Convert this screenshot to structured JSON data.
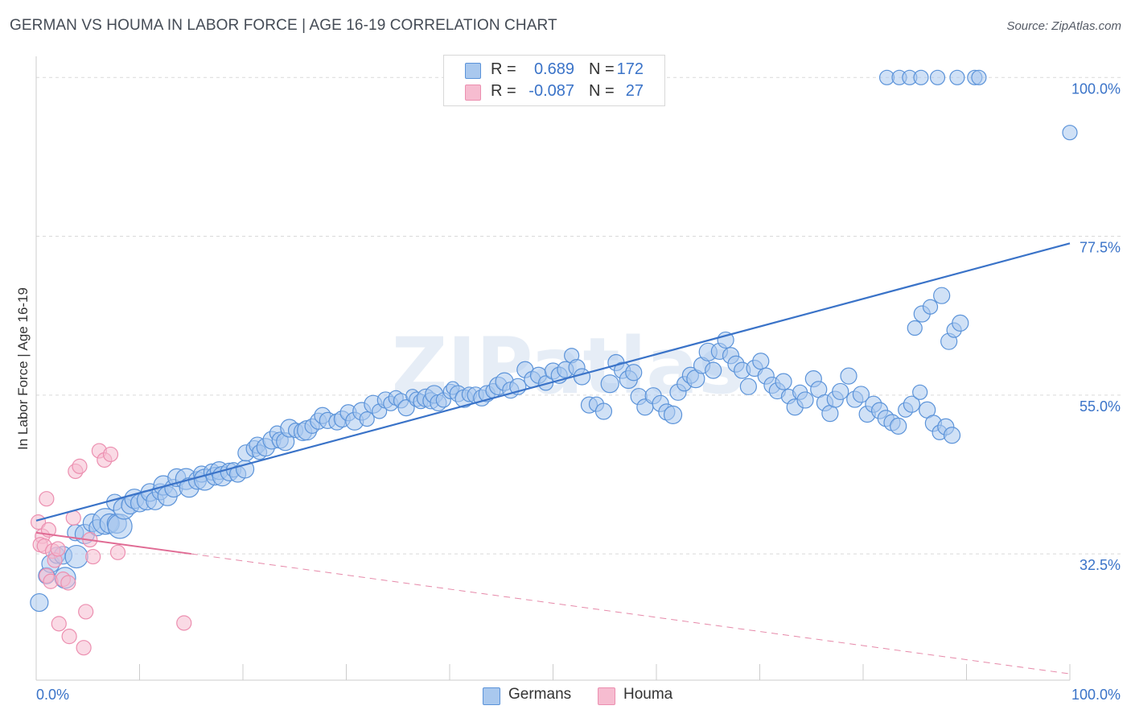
{
  "title": "GERMAN VS HOUMA IN LABOR FORCE | AGE 16-19 CORRELATION CHART",
  "source": "Source: ZipAtlas.com",
  "watermark": "ZIPatlas",
  "colors": {
    "blue": "#3a73c8",
    "blue_fill": "#a9c8ee",
    "blue_stroke": "#5b93d9",
    "pink": "#e06b94",
    "pink_fill": "#f6bcd0",
    "pink_stroke": "#ec8fb0",
    "grid": "#d9d9d9",
    "axis": "#cccccc"
  },
  "legend_top": [
    {
      "series": "Germans",
      "r_label": "R =",
      "r_value": "0.689",
      "n_label": "N =",
      "n_value": "172",
      "swatch": "#a9c8ee"
    },
    {
      "series": "Houma",
      "r_label": "R =",
      "r_value": "-0.087",
      "n_label": "N =",
      "n_value": "27",
      "swatch": "#f6bcd0"
    }
  ],
  "legend_bottom": [
    {
      "label": "Germans",
      "swatch": "#a9c8ee"
    },
    {
      "label": "Houma",
      "swatch": "#f6bcd0"
    }
  ],
  "chart_data": {
    "type": "scatter",
    "title": "GERMAN VS HOUMA IN LABOR FORCE | AGE 16-19 CORRELATION CHART",
    "xlabel": "",
    "ylabel": "In Labor Force | Age 16-19",
    "xlim": [
      0,
      100
    ],
    "ylim": [
      14.6,
      103
    ],
    "x_tick_labels": [
      {
        "value": 0,
        "label": "0.0%"
      },
      {
        "value": 100,
        "label": "100.0%"
      }
    ],
    "y_tick_labels": [
      {
        "value": 32.5,
        "label": "32.5%"
      },
      {
        "value": 55.0,
        "label": "55.0%"
      },
      {
        "value": 77.5,
        "label": "77.5%"
      },
      {
        "value": 100.0,
        "label": "100.0%"
      }
    ],
    "x_minor_ticks": [
      10,
      20,
      30,
      40,
      50,
      60,
      70,
      80,
      90,
      100
    ],
    "legend_position": "top-center",
    "series": [
      {
        "name": "Germans",
        "R": 0.689,
        "N": 172,
        "trendline": {
          "x": [
            0,
            100
          ],
          "y": [
            37.2,
            76.5
          ],
          "style": "solid"
        },
        "points": [
          [
            0.3,
            25.6,
            11
          ],
          [
            1,
            29.4,
            10
          ],
          [
            1.4,
            31.1,
            11
          ],
          [
            2,
            32.3,
            10
          ],
          [
            2.6,
            32.3,
            11
          ],
          [
            2.8,
            29.1,
            13
          ],
          [
            3.8,
            35.5,
            10
          ],
          [
            3.9,
            32.1,
            14
          ],
          [
            4.7,
            35.3,
            12
          ],
          [
            5.4,
            36.9,
            11
          ],
          [
            5.9,
            36.2,
            10
          ],
          [
            6.7,
            37.1,
            16
          ],
          [
            7.1,
            36.8,
            12
          ],
          [
            7.8,
            36.8,
            12
          ],
          [
            7.6,
            39.8,
            10
          ],
          [
            8.1,
            36.4,
            15
          ],
          [
            8.5,
            38.9,
            13
          ],
          [
            9.1,
            39.4,
            11
          ],
          [
            9.5,
            40.3,
            12
          ],
          [
            10,
            39.7,
            11
          ],
          [
            10.7,
            40.1,
            12
          ],
          [
            11,
            41.2,
            11
          ],
          [
            11.5,
            40.0,
            11
          ],
          [
            12,
            41.3,
            10
          ],
          [
            12.3,
            42.2,
            12
          ],
          [
            12.7,
            40.7,
            12
          ],
          [
            13.3,
            41.8,
            11
          ],
          [
            13.6,
            43.3,
            11
          ],
          [
            14.5,
            43.1,
            13
          ],
          [
            14.8,
            41.9,
            12
          ],
          [
            15.6,
            42.9,
            11
          ],
          [
            16,
            43.8,
            10
          ],
          [
            16.3,
            43.0,
            13
          ],
          [
            17,
            44.1,
            10
          ],
          [
            17.3,
            43.5,
            11
          ],
          [
            17.7,
            44.3,
            11
          ],
          [
            18,
            43.5,
            12
          ],
          [
            18.7,
            44.1,
            11
          ],
          [
            19.1,
            44.4,
            9
          ],
          [
            19.5,
            43.8,
            10
          ],
          [
            20.2,
            44.5,
            11
          ],
          [
            20.3,
            46.8,
            10
          ],
          [
            21.1,
            47.4,
            10
          ],
          [
            21.4,
            47.9,
            10
          ],
          [
            21.6,
            46.9,
            9
          ],
          [
            22.2,
            47.6,
            11
          ],
          [
            22.8,
            48.6,
            11
          ],
          [
            23.3,
            49.6,
            9
          ],
          [
            23.6,
            48.6,
            10
          ],
          [
            24.1,
            48.4,
            11
          ],
          [
            24.5,
            50.3,
            11
          ],
          [
            25.1,
            50.0,
            9
          ],
          [
            25.8,
            49.8,
            11
          ],
          [
            26.2,
            50.0,
            12
          ],
          [
            26.7,
            50.6,
            9
          ],
          [
            27.3,
            51.3,
            10
          ],
          [
            27.7,
            52.1,
            10
          ],
          [
            28.2,
            51.4,
            10
          ],
          [
            29.1,
            51.2,
            10
          ],
          [
            29.6,
            51.6,
            10
          ],
          [
            30.2,
            52.5,
            10
          ],
          [
            30.8,
            51.3,
            11
          ],
          [
            31.5,
            52.7,
            11
          ],
          [
            32,
            51.6,
            9
          ],
          [
            32.6,
            53.7,
            11
          ],
          [
            33.2,
            52.7,
            9
          ],
          [
            33.8,
            54.3,
            10
          ],
          [
            34.3,
            53.8,
            9
          ],
          [
            34.8,
            54.6,
            9
          ],
          [
            35.3,
            54.2,
            9
          ],
          [
            35.8,
            53.2,
            10
          ],
          [
            36.4,
            54.9,
            8
          ],
          [
            36.8,
            54.4,
            9
          ],
          [
            37.2,
            54.1,
            9
          ],
          [
            37.7,
            54.6,
            11
          ],
          [
            38.2,
            54.2,
            10
          ],
          [
            38.5,
            55.1,
            11
          ],
          [
            38.9,
            53.9,
            10
          ],
          [
            39.4,
            54.3,
            9
          ],
          [
            40.1,
            55.5,
            9
          ],
          [
            40.3,
            56.0,
            8
          ],
          [
            40.8,
            55.2,
            10
          ],
          [
            41.4,
            54.5,
            11
          ],
          [
            41.9,
            55.1,
            9
          ],
          [
            42.5,
            55.0,
            10
          ],
          [
            43.1,
            54.6,
            10
          ],
          [
            43.6,
            55.2,
            10
          ],
          [
            44.2,
            55.6,
            9
          ],
          [
            44.7,
            56.3,
            11
          ],
          [
            45.3,
            56.9,
            11
          ],
          [
            45.9,
            55.7,
            10
          ],
          [
            46.6,
            56.2,
            10
          ],
          [
            47.3,
            58.6,
            10
          ],
          [
            48,
            57.2,
            10
          ],
          [
            48.6,
            57.8,
            10
          ],
          [
            49.3,
            56.7,
            9
          ],
          [
            50,
            58.4,
            10
          ],
          [
            50.6,
            57.8,
            10
          ],
          [
            51.2,
            58.6,
            10
          ],
          [
            51.8,
            60.6,
            9
          ],
          [
            52.3,
            58.9,
            10
          ],
          [
            52.8,
            57.6,
            10
          ],
          [
            53.5,
            53.6,
            10
          ],
          [
            54.2,
            53.7,
            9
          ],
          [
            54.9,
            52.7,
            10
          ],
          [
            55.5,
            56.6,
            11
          ],
          [
            56.1,
            59.6,
            10
          ],
          [
            56.7,
            58.5,
            10
          ],
          [
            57.3,
            57.2,
            11
          ],
          [
            57.8,
            58.2,
            10
          ],
          [
            58.3,
            54.8,
            10
          ],
          [
            58.9,
            53.3,
            10
          ],
          [
            59.7,
            54.9,
            10
          ],
          [
            60.4,
            53.8,
            10
          ],
          [
            61,
            52.6,
            10
          ],
          [
            61.6,
            52.2,
            11
          ],
          [
            62.1,
            55.4,
            10
          ],
          [
            62.7,
            56.6,
            9
          ],
          [
            63.3,
            57.8,
            10
          ],
          [
            63.8,
            57.3,
            11
          ],
          [
            64.4,
            59.2,
            10
          ],
          [
            65,
            61.1,
            11
          ],
          [
            65.5,
            58.5,
            10
          ],
          [
            66.1,
            61.2,
            10
          ],
          [
            66.7,
            62.8,
            10
          ],
          [
            67.2,
            60.6,
            10
          ],
          [
            67.7,
            59.4,
            10
          ],
          [
            68.3,
            58.5,
            10
          ],
          [
            68.9,
            56.2,
            10
          ],
          [
            69.5,
            58.8,
            10
          ],
          [
            70.1,
            59.8,
            10
          ],
          [
            70.6,
            57.7,
            10
          ],
          [
            71.2,
            56.4,
            10
          ],
          [
            71.7,
            55.6,
            10
          ],
          [
            72.3,
            56.9,
            10
          ],
          [
            72.8,
            54.8,
            9
          ],
          [
            73.4,
            53.3,
            10
          ],
          [
            73.9,
            55.4,
            9
          ],
          [
            74.4,
            54.3,
            10
          ],
          [
            75.2,
            57.3,
            10
          ],
          [
            75.7,
            55.8,
            10
          ],
          [
            76.3,
            53.9,
            10
          ],
          [
            76.8,
            52.4,
            10
          ],
          [
            77.3,
            54.4,
            10
          ],
          [
            77.8,
            55.5,
            10
          ],
          [
            78.6,
            57.7,
            10
          ],
          [
            79.2,
            54.4,
            10
          ],
          [
            79.8,
            55.1,
            10
          ],
          [
            80.4,
            52.3,
            10
          ],
          [
            81,
            53.7,
            10
          ],
          [
            81.6,
            52.8,
            10
          ],
          [
            82.2,
            51.7,
            10
          ],
          [
            82.8,
            51.1,
            10
          ],
          [
            83.4,
            50.6,
            10
          ],
          [
            84.1,
            52.9,
            9
          ],
          [
            84.7,
            53.7,
            10
          ],
          [
            85.5,
            55.4,
            9
          ],
          [
            86.2,
            52.9,
            10
          ],
          [
            86.8,
            51.0,
            10
          ],
          [
            87.4,
            49.7,
            9
          ],
          [
            88,
            50.5,
            10
          ],
          [
            88.6,
            49.3,
            10
          ],
          [
            85,
            64.5,
            9
          ],
          [
            85.7,
            66.5,
            10
          ],
          [
            86.5,
            67.5,
            9
          ],
          [
            87.6,
            69.1,
            10
          ],
          [
            88.3,
            62.6,
            10
          ],
          [
            88.8,
            64.2,
            9
          ],
          [
            89.4,
            65.2,
            10
          ],
          [
            82.3,
            100.0,
            9
          ],
          [
            83.5,
            100.0,
            9
          ],
          [
            84.5,
            100.0,
            9
          ],
          [
            85.6,
            100.0,
            9
          ],
          [
            87.2,
            100.0,
            9
          ],
          [
            89.1,
            100.0,
            9
          ],
          [
            90.8,
            100.0,
            9
          ],
          [
            91.2,
            100.0,
            9
          ],
          [
            100,
            92.2,
            9
          ]
        ]
      },
      {
        "name": "Houma",
        "R": -0.087,
        "N": 27,
        "trendline": {
          "x": [
            0,
            100
          ],
          "y": [
            35.5,
            15.5
          ],
          "style": "solid-then-dashed",
          "solid_until_x": 15
        },
        "points": [
          [
            0.2,
            37.0,
            9
          ],
          [
            0.6,
            35.0,
            9
          ],
          [
            0.4,
            33.8,
            9
          ],
          [
            0.8,
            33.6,
            9
          ],
          [
            1,
            29.4,
            9
          ],
          [
            1.2,
            35.9,
            9
          ],
          [
            1.4,
            28.6,
            9
          ],
          [
            1.6,
            32.9,
            9
          ],
          [
            1.8,
            31.6,
            9
          ],
          [
            2.1,
            33.2,
            9
          ],
          [
            2.2,
            22.6,
            9
          ],
          [
            2.6,
            28.9,
            9
          ],
          [
            3.1,
            28.4,
            9
          ],
          [
            3.2,
            20.8,
            9
          ],
          [
            3.6,
            37.6,
            9
          ],
          [
            3.8,
            44.2,
            9
          ],
          [
            4.2,
            44.9,
            9
          ],
          [
            4.6,
            19.2,
            9
          ],
          [
            4.8,
            24.3,
            9
          ],
          [
            5.2,
            34.5,
            9
          ],
          [
            5.5,
            32.1,
            9
          ],
          [
            6.1,
            47.1,
            9
          ],
          [
            6.6,
            45.8,
            9
          ],
          [
            7.2,
            46.6,
            9
          ],
          [
            7.9,
            32.7,
            9
          ],
          [
            14.3,
            22.7,
            9
          ],
          [
            1.0,
            40.3,
            9
          ]
        ]
      }
    ]
  }
}
